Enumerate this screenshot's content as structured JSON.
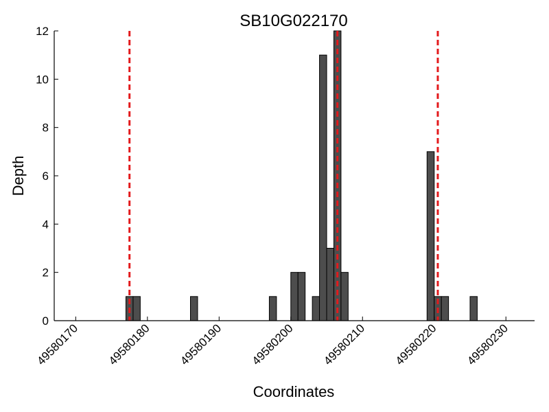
{
  "chart_data": {
    "type": "bar",
    "title": "SB10G022170",
    "xlabel": "Coordinates",
    "ylabel": "Depth",
    "xlim": [
      49580167,
      49580234
    ],
    "ylim": [
      0,
      12
    ],
    "x_ticks": [
      49580170,
      49580180,
      49580190,
      49580200,
      49580210,
      49580220,
      49580230
    ],
    "y_ticks": [
      0,
      2,
      4,
      6,
      8,
      10,
      12
    ],
    "bar_color": "#4d4d4d",
    "bar_edge_color": "#000000",
    "bar_width": 1,
    "bars": [
      {
        "x": 49580177,
        "y": 1
      },
      {
        "x": 49580178,
        "y": 1
      },
      {
        "x": 49580186,
        "y": 1
      },
      {
        "x": 49580197,
        "y": 1
      },
      {
        "x": 49580200,
        "y": 2
      },
      {
        "x": 49580201,
        "y": 2
      },
      {
        "x": 49580203,
        "y": 1
      },
      {
        "x": 49580204,
        "y": 11
      },
      {
        "x": 49580205,
        "y": 3
      },
      {
        "x": 49580206,
        "y": 12
      },
      {
        "x": 49580207,
        "y": 2
      },
      {
        "x": 49580219,
        "y": 7
      },
      {
        "x": 49580220,
        "y": 1
      },
      {
        "x": 49580221,
        "y": 1
      },
      {
        "x": 49580225,
        "y": 1
      }
    ],
    "reference_lines": {
      "color": "#e31a1c",
      "style": "dashed",
      "x": [
        49580177.5,
        49580206.5,
        49580220.5
      ]
    },
    "grid": false
  }
}
